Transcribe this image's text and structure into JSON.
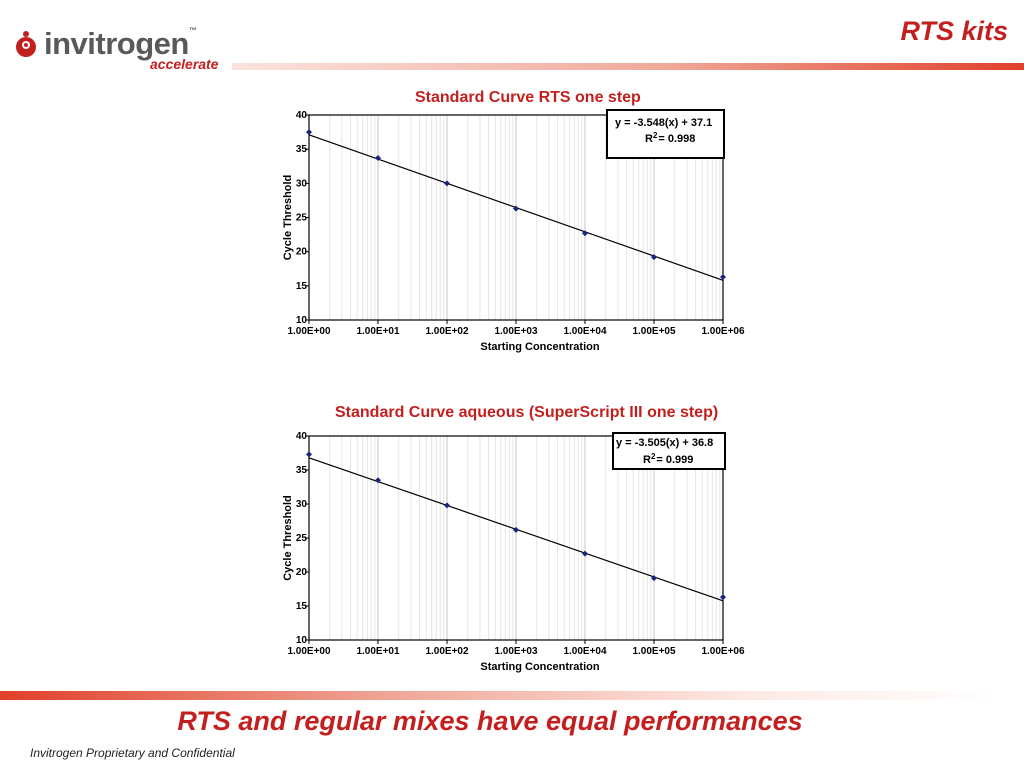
{
  "header": {
    "logo_text": "invitrogen",
    "logo_tm": "™",
    "logo_sub": "accelerate",
    "page_title": "RTS kits"
  },
  "colors": {
    "accent": "#c41f1f",
    "point": "#1a237e",
    "line": "#000000",
    "logo_text": "#595959"
  },
  "chart_data": [
    {
      "type": "scatter",
      "title": "Standard Curve RTS one step",
      "xlabel": "Starting Concentration",
      "ylabel": "Cycle Threshold",
      "xscale": "log",
      "xlim": [
        1,
        1000000
      ],
      "ylim": [
        10,
        40
      ],
      "xticks": [
        "1.00E+00",
        "1.00E+01",
        "1.00E+02",
        "1.00E+03",
        "1.00E+04",
        "1.00E+05",
        "1.00E+06"
      ],
      "yticks": [
        "10",
        "15",
        "20",
        "25",
        "30",
        "35",
        "40"
      ],
      "grid": true,
      "series": [
        {
          "x": [
            1,
            10,
            100,
            1000,
            10000,
            100000,
            1000000
          ],
          "y": [
            37.5,
            33.7,
            30.0,
            26.3,
            22.7,
            19.2,
            16.3
          ]
        }
      ],
      "fit": {
        "slope": -3.548,
        "intercept": 37.1
      },
      "annotation": {
        "equation": "y = -3.548(x) + 37.1",
        "r2_prefix": "R",
        "r2_sup": "2",
        "r2_value": "= 0.998"
      }
    },
    {
      "type": "scatter",
      "title": "Standard Curve aqueous (SuperScript III one step)",
      "xlabel": "Starting Concentration",
      "ylabel": "Cycle Threshold",
      "xscale": "log",
      "xlim": [
        1,
        1000000
      ],
      "ylim": [
        10,
        40
      ],
      "xticks": [
        "1.00E+00",
        "1.00E+01",
        "1.00E+02",
        "1.00E+03",
        "1.00E+04",
        "1.00E+05",
        "1.00E+06"
      ],
      "yticks": [
        "10",
        "15",
        "20",
        "25",
        "30",
        "35",
        "40"
      ],
      "grid": true,
      "series": [
        {
          "x": [
            1,
            10,
            100,
            1000,
            10000,
            100000,
            1000000
          ],
          "y": [
            37.3,
            33.5,
            29.8,
            26.2,
            22.7,
            19.1,
            16.3
          ]
        }
      ],
      "fit": {
        "slope": -3.505,
        "intercept": 36.8
      },
      "annotation": {
        "equation": "y = -3.505(x) + 36.8",
        "r2_prefix": "R",
        "r2_sup": "2",
        "r2_value": "= 0.999"
      }
    }
  ],
  "conclusion": "RTS and regular mixes have equal performances",
  "footer": "Invitrogen Proprietary and Confidential"
}
